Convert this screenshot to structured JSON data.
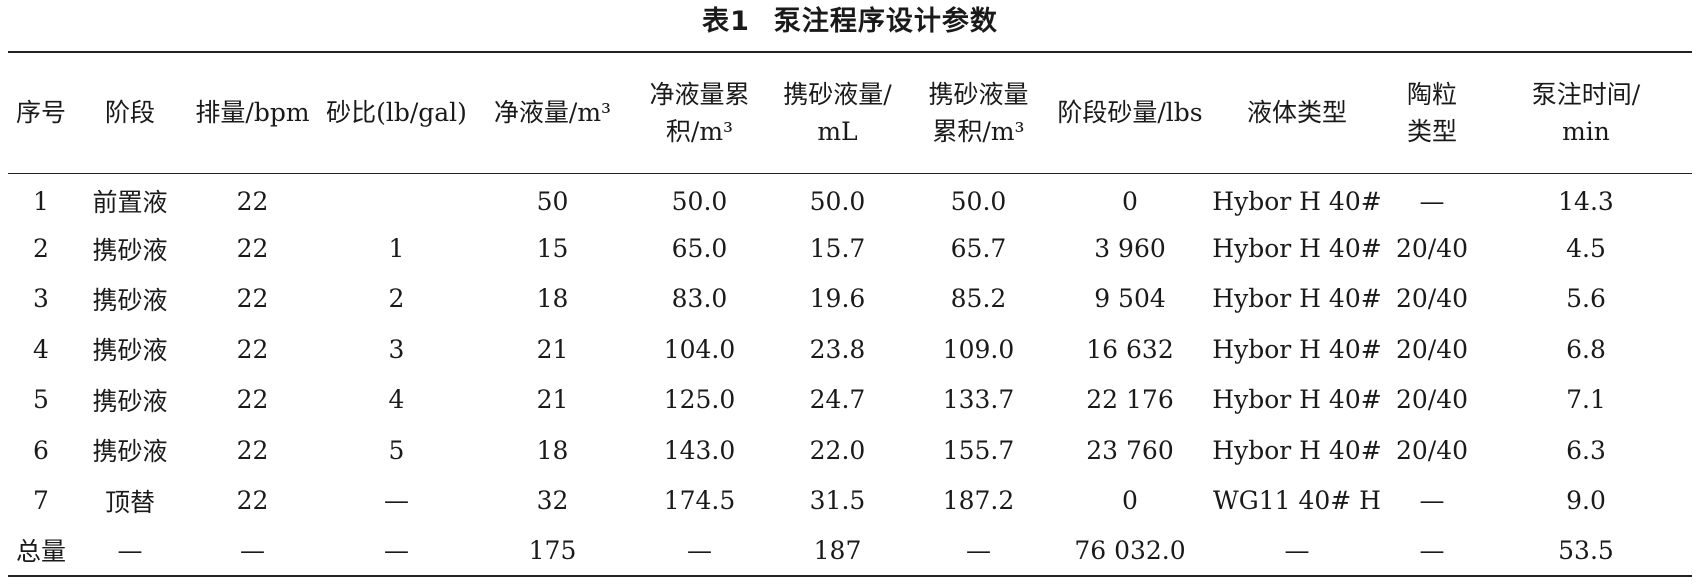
{
  "caption": {
    "number": "表1",
    "title": "泵注程序设计参数"
  },
  "columns": [
    [
      "序号"
    ],
    [
      "阶段"
    ],
    [
      "排量/bpm"
    ],
    [
      "砂比(lb/gal)"
    ],
    [
      "净液量/m³"
    ],
    [
      "净液量累",
      "积/m³"
    ],
    [
      "携砂液量/",
      "mL"
    ],
    [
      "携砂液量",
      "累积/m³"
    ],
    [
      "阶段砂量/lbs"
    ],
    [
      "液体类型"
    ],
    [
      "陶粒",
      "类型"
    ],
    [
      "泵注时间/",
      "min"
    ]
  ],
  "rows": [
    [
      "1",
      "前置液",
      "22",
      "",
      "50",
      "50.0",
      "50.0",
      "50.0",
      "0",
      "Hybor H 40#",
      "—",
      "14.3"
    ],
    [
      "2",
      "携砂液",
      "22",
      "1",
      "15",
      "65.0",
      "15.7",
      "65.7",
      "3 960",
      "Hybor H 40#",
      "20/40",
      "4.5"
    ],
    [
      "3",
      "携砂液",
      "22",
      "2",
      "18",
      "83.0",
      "19.6",
      "85.2",
      "9 504",
      "Hybor H 40#",
      "20/40",
      "5.6"
    ],
    [
      "4",
      "携砂液",
      "22",
      "3",
      "21",
      "104.0",
      "23.8",
      "109.0",
      "16 632",
      "Hybor H 40#",
      "20/40",
      "6.8"
    ],
    [
      "5",
      "携砂液",
      "22",
      "4",
      "21",
      "125.0",
      "24.7",
      "133.7",
      "22 176",
      "Hybor H 40#",
      "20/40",
      "7.1"
    ],
    [
      "6",
      "携砂液",
      "22",
      "5",
      "18",
      "143.0",
      "22.0",
      "155.7",
      "23 760",
      "Hybor H 40#",
      "20/40",
      "6.3"
    ],
    [
      "7",
      "顶替",
      "22",
      "—",
      "32",
      "174.5",
      "31.5",
      "187.2",
      "0",
      "WG11 40# H",
      "—",
      "9.0"
    ],
    [
      "总量",
      "—",
      "—",
      "—",
      "175",
      "—",
      "187",
      "—",
      "76 032.0",
      "—",
      "—",
      "53.5"
    ]
  ]
}
